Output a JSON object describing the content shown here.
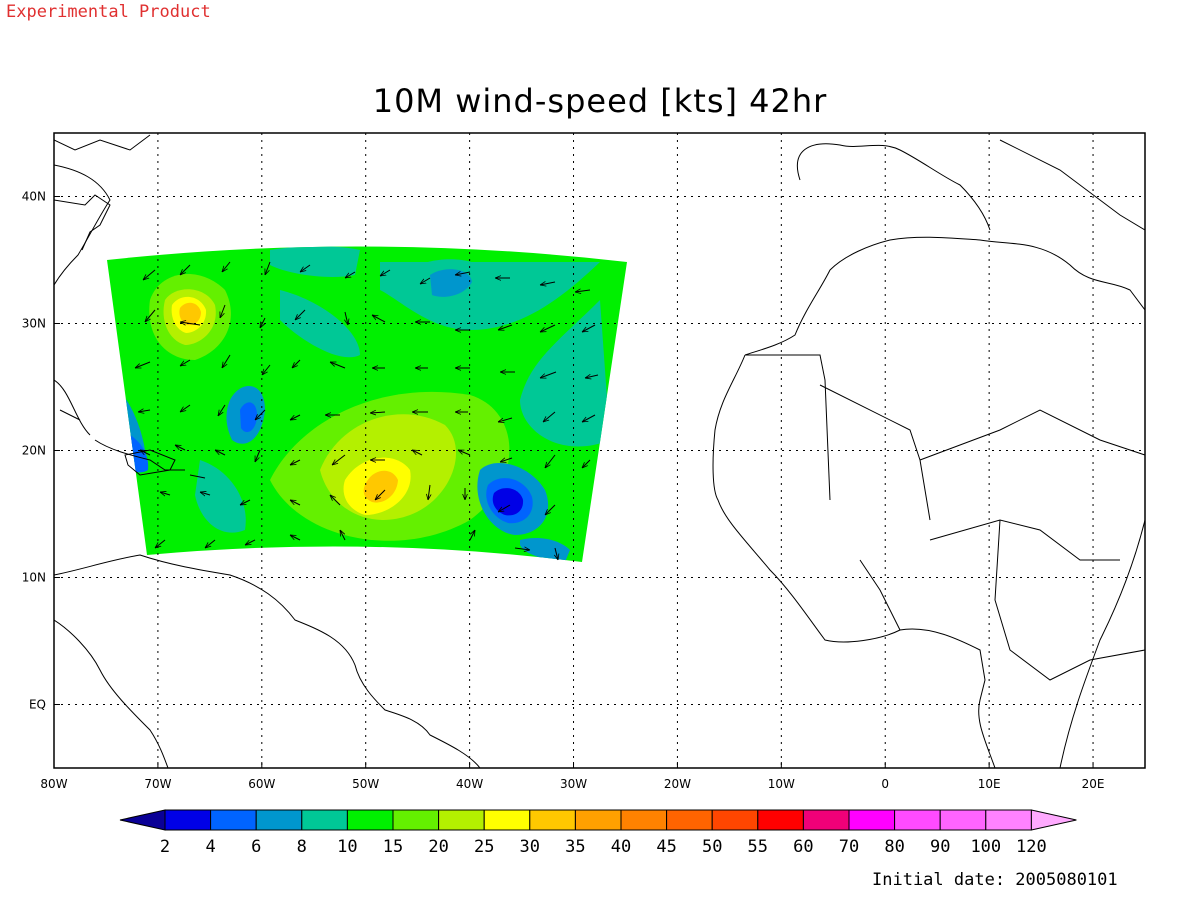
{
  "header": {
    "watermark": "Experimental Product",
    "title": "10M wind-speed [kts] 42hr"
  },
  "footer": {
    "initial_date": "Initial date: 2005080101"
  },
  "map": {
    "lon_range": [
      -80,
      25
    ],
    "lat_range": [
      -5,
      45
    ],
    "x_tick_labels": [
      {
        "lon": -80,
        "label": "80W"
      },
      {
        "lon": -70,
        "label": "70W"
      },
      {
        "lon": -60,
        "label": "60W"
      },
      {
        "lon": -50,
        "label": "50W"
      },
      {
        "lon": -40,
        "label": "40W"
      },
      {
        "lon": -30,
        "label": "30W"
      },
      {
        "lon": -20,
        "label": "20W"
      },
      {
        "lon": -10,
        "label": "10W"
      },
      {
        "lon": 0,
        "label": "0"
      },
      {
        "lon": 10,
        "label": "10E"
      },
      {
        "lon": 20,
        "label": "20E"
      }
    ],
    "y_tick_labels": [
      {
        "lat": 40,
        "label": "40N"
      },
      {
        "lat": 30,
        "label": "30N"
      },
      {
        "lat": 20,
        "label": "20N"
      },
      {
        "lat": 10,
        "label": "10N"
      },
      {
        "lat": 0,
        "label": "EQ"
      }
    ],
    "grid": "dotted",
    "features": [
      {
        "name": "storm-center-west",
        "lon": -67,
        "lat": 30.5,
        "peak_kts": 35
      },
      {
        "name": "storm-center-central",
        "lon": -48.5,
        "lat": 18,
        "peak_kts": 30
      },
      {
        "name": "calm-area-east",
        "lon": -36,
        "lat": 16,
        "min_kts": 2
      }
    ]
  },
  "colorbar": {
    "labels": [
      "2",
      "4",
      "6",
      "8",
      "10",
      "15",
      "20",
      "25",
      "30",
      "35",
      "40",
      "45",
      "50",
      "55",
      "60",
      "70",
      "80",
      "90",
      "100",
      "120"
    ],
    "colors": [
      "#0a0096",
      "#0000e6",
      "#0064ff",
      "#0096cd",
      "#00c896",
      "#00f000",
      "#64f000",
      "#b4f000",
      "#ffff00",
      "#ffc800",
      "#ffa000",
      "#ff8200",
      "#ff6400",
      "#ff4600",
      "#ff0000",
      "#f00078",
      "#ff00ff",
      "#ff4bff",
      "#ff64ff",
      "#ff82ff",
      "#ffaaff"
    ]
  }
}
